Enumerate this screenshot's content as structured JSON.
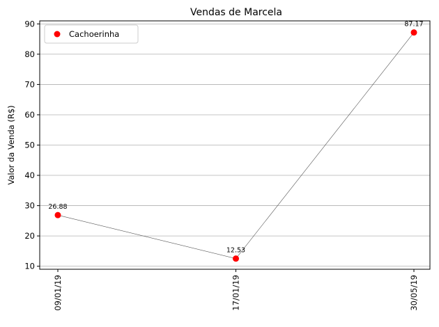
{
  "chart_data": {
    "type": "scatter",
    "title": "Vendas de Marcela",
    "xlabel": "",
    "ylabel": "Valor da Venda (R$)",
    "categories": [
      "09/01/19",
      "17/01/19",
      "30/05/19"
    ],
    "series": [
      {
        "name": "Cachoerinha",
        "values": [
          26.88,
          12.53,
          87.17
        ],
        "labels": [
          "26.88",
          "12.53",
          "87.17"
        ],
        "color": "#ff0000",
        "line_color": "#555555"
      }
    ],
    "ylim": [
      9,
      91
    ],
    "yticks": [
      10,
      20,
      30,
      40,
      50,
      60,
      70,
      80,
      90
    ],
    "grid": "y",
    "legend": "top-left"
  }
}
